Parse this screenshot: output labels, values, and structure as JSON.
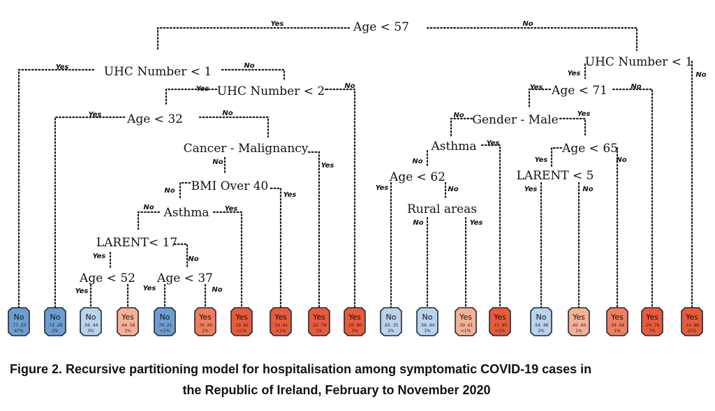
{
  "diagram": {
    "splits": [
      {
        "id": "root",
        "label": "Age < 57"
      },
      {
        "id": "uhc1_left",
        "label": "UHC Number < 1"
      },
      {
        "id": "uhc1_right",
        "label": "UHC Number < 1"
      },
      {
        "id": "uhc2",
        "label": "UHC Number < 2"
      },
      {
        "id": "age32",
        "label": "Age < 32"
      },
      {
        "id": "cancer",
        "label": "Cancer - Malignancy"
      },
      {
        "id": "bmi",
        "label": "BMI Over 40"
      },
      {
        "id": "asthma_left",
        "label": "Asthma"
      },
      {
        "id": "larent17",
        "label": "LARENT< 17"
      },
      {
        "id": "age52",
        "label": "Age < 52"
      },
      {
        "id": "age37",
        "label": "Age < 37"
      },
      {
        "id": "age71",
        "label": "Age < 71"
      },
      {
        "id": "gender",
        "label": "Gender - Male"
      },
      {
        "id": "asthma_right",
        "label": "Asthma"
      },
      {
        "id": "age62",
        "label": "Age < 62"
      },
      {
        "id": "rural",
        "label": "Rural areas"
      },
      {
        "id": "age65",
        "label": "Age < 65"
      },
      {
        "id": "larent5",
        "label": "LARENT < 5"
      }
    ],
    "edge_labels": {
      "yes": "Yes",
      "no": "No"
    },
    "leaves": [
      {
        "class": "No",
        "probs": ".77  .23",
        "pct": "47%"
      },
      {
        "class": "No",
        "probs": ".72  .28",
        "pct": "2%"
      },
      {
        "class": "No",
        "probs": ".56  .44",
        "pct": "3%"
      },
      {
        "class": "Yes",
        "probs": ".44  .56",
        "pct": "1%"
      },
      {
        "class": "No",
        "probs": ".79  .21",
        "pct": "<1%"
      },
      {
        "class": "Yes",
        "probs": ".35  .65",
        "pct": "1%"
      },
      {
        "class": "Yes",
        "probs": ".19  .81",
        "pct": "<1%"
      },
      {
        "class": "Yes",
        "probs": ".19  .81",
        "pct": "<1%"
      },
      {
        "class": "Yes",
        "probs": ".22  .78",
        "pct": "1%"
      },
      {
        "class": "Yes",
        "probs": ".20  .80",
        "pct": "3%"
      },
      {
        "class": "No",
        "probs": ".65  .35",
        "pct": "2%"
      },
      {
        "class": "No",
        "probs": ".56  .44",
        "pct": "1%"
      },
      {
        "class": "Yes",
        "probs": ".39  .61",
        "pct": "<1%"
      },
      {
        "class": "Yes",
        "probs": ".15  .85",
        "pct": "<1%"
      },
      {
        "class": "No",
        "probs": ".54  .46",
        "pct": "2%"
      },
      {
        "class": "Yes",
        "probs": ".40  .60",
        "pct": "1%"
      },
      {
        "class": "Yes",
        "probs": ".34  .66",
        "pct": "1%"
      },
      {
        "class": "Yes",
        "probs": ".24  .76",
        "pct": "7%"
      },
      {
        "class": "Yes",
        "probs": ".14  .86",
        "pct": "21%"
      }
    ],
    "colors": {
      "no_strong": "#6d9ed3",
      "no_light": "#b9d2ee",
      "yes_light": "#f8b095",
      "yes_mid": "#f27e5d",
      "yes_strong": "#ea5a3a"
    }
  },
  "caption": {
    "line1": "Figure 2. Recursive partitioning model for hospitalisation among symptomatic COVID-19 cases in",
    "line2": "the Republic of Ireland, February to November 2020"
  }
}
